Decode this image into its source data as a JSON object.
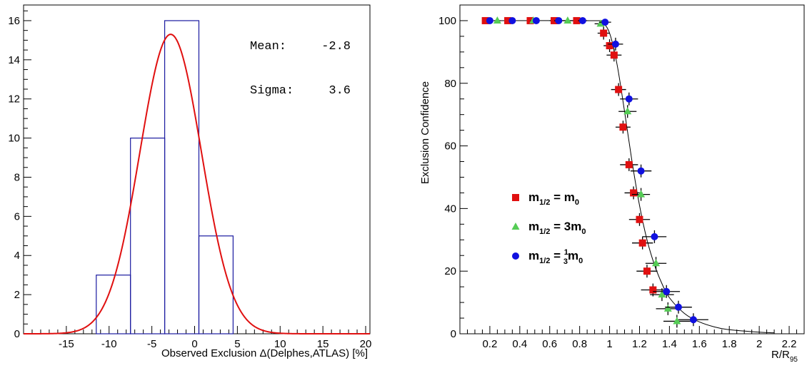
{
  "chart_data": [
    {
      "type": "bar",
      "subtype": "histogram",
      "xlabel": "Observed Exclusion Δ(Delphes,ATLAS) [%]",
      "ylabel": "",
      "xlim": [
        -20,
        20.5
      ],
      "ylim": [
        0,
        16.8
      ],
      "xticks": [
        -15,
        -10,
        -5,
        0,
        5,
        10,
        15,
        20
      ],
      "yticks": [
        0,
        2,
        4,
        6,
        8,
        10,
        12,
        14,
        16
      ],
      "bins": [
        {
          "lo": -11.5,
          "hi": -7.5,
          "value": 3
        },
        {
          "lo": -7.5,
          "hi": -3.5,
          "value": 10
        },
        {
          "lo": -3.5,
          "hi": 0.5,
          "value": 16
        },
        {
          "lo": 0.5,
          "hi": 4.5,
          "value": 5
        }
      ],
      "fit": {
        "type": "gaussian",
        "mean": -2.8,
        "sigma": 3.6,
        "amplitude": 15.3
      },
      "stats": {
        "mean_label": "Mean:",
        "mean_value": "-2.8",
        "sigma_label": "Sigma:",
        "sigma_value": "3.6"
      },
      "colors": {
        "histogram": "#1a1aa0",
        "fit": "#e01010"
      },
      "grid": false
    },
    {
      "type": "scatter",
      "xlabel": "R/R",
      "xlabel_sub": "95",
      "ylabel": "Exclusion Confidence",
      "xlim": [
        0,
        2.3
      ],
      "ylim": [
        0,
        105
      ],
      "xticks": [
        "0.2",
        "0.4",
        "0.6",
        "0.8",
        "1",
        "1.2",
        "1.4",
        "1.6",
        "1.8",
        "2",
        "2.2"
      ],
      "yticks": [
        "0",
        "20",
        "40",
        "60",
        "80",
        "100"
      ],
      "legend": {
        "placement": "center-left",
        "entries": [
          {
            "base": "m",
            "sub": "1/2",
            "eq": " = m",
            "sub2": "0",
            "coef": ""
          },
          {
            "base": "m",
            "sub": "1/2",
            "eq": " = 3m",
            "sub2": "0",
            "coef": ""
          },
          {
            "base": "m",
            "sub": "1/2",
            "eq": " = ",
            "sub2": "0",
            "coef": "1/3"
          }
        ]
      },
      "series": [
        {
          "marker": "square",
          "color": "#e01010",
          "points": [
            {
              "x": 0.17,
              "y": 100,
              "xerr": 0.02
            },
            {
              "x": 0.32,
              "y": 100,
              "xerr": 0.02
            },
            {
              "x": 0.47,
              "y": 100,
              "xerr": 0.02
            },
            {
              "x": 0.63,
              "y": 100,
              "xerr": 0.03
            },
            {
              "x": 0.78,
              "y": 100,
              "xerr": 0.03
            },
            {
              "x": 0.96,
              "y": 96,
              "xerr": 0.04
            },
            {
              "x": 1.0,
              "y": 92,
              "xerr": 0.04
            },
            {
              "x": 1.03,
              "y": 89,
              "xerr": 0.05
            },
            {
              "x": 1.06,
              "y": 78,
              "xerr": 0.05
            },
            {
              "x": 1.09,
              "y": 66,
              "xerr": 0.05
            },
            {
              "x": 1.13,
              "y": 54,
              "xerr": 0.06
            },
            {
              "x": 1.16,
              "y": 45,
              "xerr": 0.06
            },
            {
              "x": 1.2,
              "y": 36.5,
              "xerr": 0.07
            },
            {
              "x": 1.22,
              "y": 29,
              "xerr": 0.07
            },
            {
              "x": 1.25,
              "y": 20,
              "xerr": 0.07
            },
            {
              "x": 1.29,
              "y": 14,
              "xerr": 0.08
            }
          ]
        },
        {
          "marker": "triangle",
          "color": "#55cc55",
          "points": [
            {
              "x": 0.25,
              "y": 100,
              "xerr": 0.02
            },
            {
              "x": 0.49,
              "y": 100,
              "xerr": 0.02
            },
            {
              "x": 0.72,
              "y": 100,
              "xerr": 0.03
            },
            {
              "x": 0.94,
              "y": 99,
              "xerr": 0.04
            },
            {
              "x": 1.12,
              "y": 71,
              "xerr": 0.06
            },
            {
              "x": 1.21,
              "y": 44.5,
              "xerr": 0.06
            },
            {
              "x": 1.31,
              "y": 22.5,
              "xerr": 0.07
            },
            {
              "x": 1.35,
              "y": 12.5,
              "xerr": 0.08
            },
            {
              "x": 1.39,
              "y": 8,
              "xerr": 0.08
            },
            {
              "x": 1.45,
              "y": 4,
              "xerr": 0.09
            }
          ]
        },
        {
          "marker": "circle",
          "color": "#1010e0",
          "points": [
            {
              "x": 0.2,
              "y": 100,
              "xerr": 0.02
            },
            {
              "x": 0.35,
              "y": 100,
              "xerr": 0.02
            },
            {
              "x": 0.51,
              "y": 100,
              "xerr": 0.02
            },
            {
              "x": 0.66,
              "y": 100,
              "xerr": 0.03
            },
            {
              "x": 0.82,
              "y": 100,
              "xerr": 0.03
            },
            {
              "x": 0.97,
              "y": 99.5,
              "xerr": 0.04
            },
            {
              "x": 1.04,
              "y": 92.5,
              "xerr": 0.05
            },
            {
              "x": 1.13,
              "y": 75,
              "xerr": 0.06
            },
            {
              "x": 1.21,
              "y": 52,
              "xerr": 0.07
            },
            {
              "x": 1.3,
              "y": 31,
              "xerr": 0.08
            },
            {
              "x": 1.38,
              "y": 13.5,
              "xerr": 0.09
            },
            {
              "x": 1.46,
              "y": 8.5,
              "xerr": 0.09
            },
            {
              "x": 1.56,
              "y": 4.5,
              "xerr": 0.1
            }
          ]
        }
      ],
      "curve": {
        "color": "#000000",
        "points": [
          {
            "x": 0.17,
            "y": 100
          },
          {
            "x": 0.9,
            "y": 100
          },
          {
            "x": 0.95,
            "y": 99.5
          },
          {
            "x": 1.0,
            "y": 96
          },
          {
            "x": 1.05,
            "y": 86
          },
          {
            "x": 1.1,
            "y": 71
          },
          {
            "x": 1.15,
            "y": 55
          },
          {
            "x": 1.2,
            "y": 41
          },
          {
            "x": 1.25,
            "y": 30
          },
          {
            "x": 1.3,
            "y": 22
          },
          {
            "x": 1.35,
            "y": 16
          },
          {
            "x": 1.4,
            "y": 11.5
          },
          {
            "x": 1.5,
            "y": 6.5
          },
          {
            "x": 1.6,
            "y": 3.8
          },
          {
            "x": 1.7,
            "y": 2.2
          },
          {
            "x": 1.8,
            "y": 1.3
          },
          {
            "x": 2.0,
            "y": 0.5
          },
          {
            "x": 2.1,
            "y": 0.3
          }
        ]
      },
      "grid": false
    }
  ]
}
